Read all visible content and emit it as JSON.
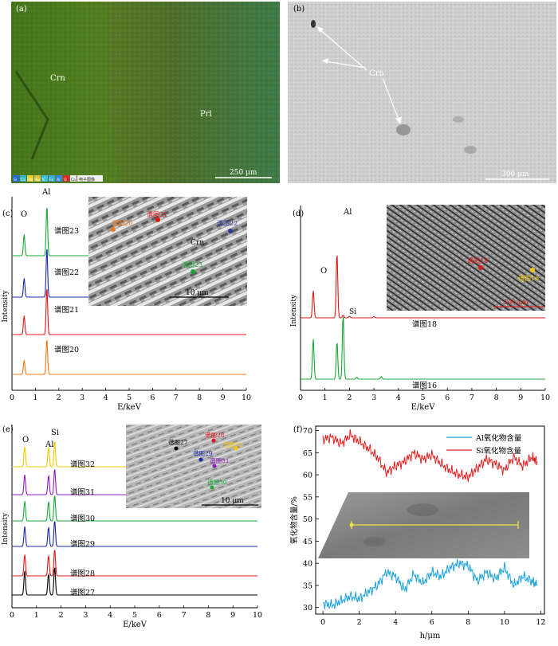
{
  "panels": {
    "a": {
      "letter": "(a)",
      "labels": [
        "Crn",
        "Prl"
      ],
      "scale_bar": "250 μm",
      "legend": [
        "Si",
        "Ca",
        "Mg",
        "Na",
        "K",
        "Fe",
        "Al",
        "O",
        "Ca",
        "电子图像"
      ]
    },
    "b": {
      "letter": "(b)",
      "label": "Crn",
      "scale_bar": "300 μm"
    },
    "c": {
      "letter": "(c)",
      "peak_labels": [
        "O",
        "Al"
      ],
      "inset_labels": [
        "谱图20",
        "谱图21",
        "谱图22",
        "谱图23",
        "Crn"
      ],
      "inset_scale": "10 μm"
    },
    "d": {
      "letter": "(d)",
      "peak_labels": [
        "O",
        "Al",
        "Si"
      ],
      "inset_labels": [
        "谱图18",
        "谱图16"
      ],
      "inset_scale": "100 μm"
    },
    "e": {
      "letter": "(e)",
      "peak_labels": [
        "O",
        "Al",
        "Si"
      ],
      "inset_labels": [
        "谱图27",
        "谱图28",
        "谱图29",
        "谱图30",
        "谱图31",
        "谱图32"
      ],
      "inset_scale": "10 μm"
    },
    "f": {
      "letter": "(f)"
    }
  },
  "colors": {
    "orange": "#f07818",
    "red": "#e01818",
    "blue": "#1828a8",
    "darkblue": "#283898",
    "green": "#18a838",
    "yellow": "#f0c800",
    "purple": "#9018c0",
    "black": "#000000",
    "cyan": "#1aa0dc",
    "f_red": "#e02020"
  },
  "chart_data": [
    {
      "panel": "c",
      "type": "line",
      "xlabel": "E/keV",
      "ylabel": "Intensity",
      "xlim": [
        0,
        10
      ],
      "x_ticks": [
        0,
        1,
        2,
        3,
        4,
        5,
        6,
        7,
        8,
        9,
        10
      ],
      "series": [
        {
          "name": "谱图20",
          "color_key": "orange",
          "peaks": [
            [
              0.52,
              0.3
            ],
            [
              1.49,
              0.75
            ]
          ]
        },
        {
          "name": "谱图21",
          "color_key": "red",
          "peaks": [
            [
              0.52,
              0.4
            ],
            [
              1.49,
              1.0
            ]
          ]
        },
        {
          "name": "谱图22",
          "color_key": "blue",
          "peaks": [
            [
              0.52,
              0.4
            ],
            [
              1.49,
              1.05
            ]
          ]
        },
        {
          "name": "谱图23",
          "color_key": "green",
          "peaks": [
            [
              0.52,
              0.45
            ],
            [
              1.49,
              1.05
            ]
          ]
        }
      ]
    },
    {
      "panel": "d",
      "type": "line",
      "xlabel": "E/keV",
      "ylabel": "Intensity",
      "xlim": [
        0,
        10
      ],
      "x_ticks": [
        0,
        1,
        2,
        3,
        4,
        5,
        6,
        7,
        8,
        9,
        10
      ],
      "series": [
        {
          "name": "谱图16",
          "color_key": "green",
          "peaks": [
            [
              0.52,
              0.62
            ],
            [
              1.49,
              0.58
            ],
            [
              1.74,
              1.0
            ],
            [
              2.3,
              0.03
            ],
            [
              3.3,
              0.04
            ]
          ]
        },
        {
          "name": "谱图18",
          "color_key": "red",
          "peaks": [
            [
              0.52,
              0.42
            ],
            [
              1.49,
              1.0
            ],
            [
              1.74,
              0.04
            ],
            [
              2.0,
              0.025
            ],
            [
              3.0,
              0.02
            ]
          ]
        }
      ]
    },
    {
      "panel": "e",
      "type": "line",
      "xlabel": "E/keV",
      "ylabel": "Intensity",
      "xlim": [
        0,
        10
      ],
      "x_ticks": [
        0,
        1,
        2,
        3,
        4,
        5,
        6,
        7,
        8,
        9,
        10
      ],
      "series": [
        {
          "name": "谱图27",
          "color_key": "black",
          "peaks": [
            [
              0.52,
              0.85
            ],
            [
              1.49,
              0.75
            ],
            [
              1.74,
              1.0
            ]
          ]
        },
        {
          "name": "谱图28",
          "color_key": "red",
          "peaks": [
            [
              0.52,
              0.75
            ],
            [
              1.49,
              0.72
            ],
            [
              1.74,
              0.95
            ]
          ]
        },
        {
          "name": "谱图29",
          "color_key": "blue",
          "peaks": [
            [
              0.52,
              0.7
            ],
            [
              1.49,
              0.68
            ],
            [
              1.74,
              0.92
            ]
          ]
        },
        {
          "name": "谱图30",
          "color_key": "green",
          "peaks": [
            [
              0.52,
              0.7
            ],
            [
              1.49,
              0.68
            ],
            [
              1.74,
              0.92
            ]
          ]
        },
        {
          "name": "谱图31",
          "color_key": "purple",
          "peaks": [
            [
              0.52,
              0.7
            ],
            [
              1.49,
              0.68
            ],
            [
              1.74,
              0.92
            ]
          ]
        },
        {
          "name": "谱图32",
          "color_key": "yellow",
          "peaks": [
            [
              0.52,
              0.7
            ],
            [
              1.49,
              0.68
            ],
            [
              1.74,
              0.92
            ]
          ]
        }
      ]
    },
    {
      "panel": "f",
      "type": "line",
      "xlabel": "h/μm",
      "ylabel": "氧化物含量/%",
      "xlim": [
        -0.4,
        12.2
      ],
      "ylim": [
        28.5,
        71
      ],
      "x_ticks": [
        0,
        2,
        4,
        6,
        8,
        10,
        12
      ],
      "y_ticks": [
        30,
        35,
        40,
        45,
        50,
        55,
        60,
        65,
        70
      ],
      "legend": "top-right",
      "series": [
        {
          "name": "Al氧化物含量",
          "color_key": "cyan",
          "x": [
            0,
            0.5,
            1,
            1.5,
            2,
            2.5,
            3,
            3.5,
            4,
            4.5,
            5,
            5.5,
            6,
            6.5,
            7,
            7.5,
            8,
            8.5,
            9,
            9.5,
            10,
            10.5,
            11,
            11.5,
            11.8
          ],
          "y": [
            31,
            30.5,
            31.5,
            32.5,
            32,
            33.5,
            35,
            38,
            37,
            34,
            37.5,
            35.5,
            38,
            37,
            39,
            40,
            39.5,
            36,
            38,
            36.5,
            39,
            35,
            37,
            36,
            35
          ]
        },
        {
          "name": "Si氧化物含量",
          "color_key": "f_red",
          "x": [
            0,
            0.5,
            1,
            1.5,
            2,
            2.5,
            3,
            3.5,
            4,
            4.5,
            5,
            5.5,
            6,
            6.5,
            7,
            7.5,
            8,
            8.5,
            9,
            9.5,
            10,
            10.5,
            11,
            11.5,
            11.8
          ],
          "y": [
            68,
            68.5,
            67,
            69,
            67.5,
            66,
            64,
            60.5,
            62,
            63,
            65,
            63.5,
            64.5,
            62.5,
            61,
            60,
            59.5,
            61.5,
            63.5,
            62.5,
            61,
            64,
            62,
            64,
            63
          ]
        }
      ]
    }
  ]
}
